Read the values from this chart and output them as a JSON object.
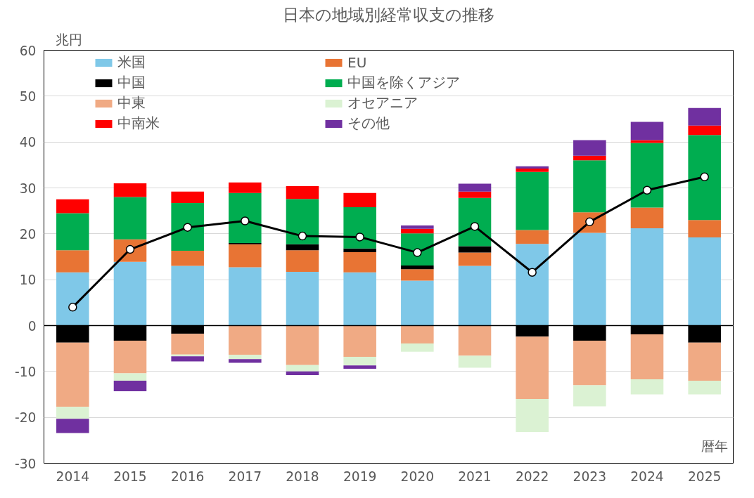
{
  "chart_data": {
    "type": "bar",
    "stacked": true,
    "title": "日本の地域別経常収支の推移",
    "ylabel": "兆円",
    "xlabel": "暦年",
    "categories": [
      "2014",
      "2015",
      "2016",
      "2017",
      "2018",
      "2019",
      "2020",
      "2021",
      "2022",
      "2023",
      "2024",
      "2025"
    ],
    "ylim": [
      -30,
      60
    ],
    "yticks": [
      -30,
      -20,
      -10,
      0,
      10,
      20,
      30,
      40,
      50,
      60
    ],
    "grid": "y",
    "legend": "top",
    "series": [
      {
        "name": "米国",
        "color": "#7fc8e8",
        "values": [
          11.6,
          13.9,
          13.0,
          12.7,
          11.7,
          11.6,
          9.8,
          13.0,
          17.8,
          20.2,
          21.2,
          19.2
        ]
      },
      {
        "name": "EU",
        "color": "#e87434",
        "values": [
          4.8,
          4.9,
          3.3,
          5.0,
          4.7,
          4.4,
          2.5,
          2.9,
          3.0,
          4.5,
          4.5,
          3.8
        ]
      },
      {
        "name": "中国",
        "color": "#000000",
        "values": [
          -3.7,
          -3.3,
          -1.8,
          0.3,
          1.3,
          0.8,
          0.8,
          1.4,
          -2.4,
          -3.3,
          -1.9,
          -3.7
        ]
      },
      {
        "name": "中国を除くアジア",
        "color": "#00ad50",
        "values": [
          8.1,
          9.2,
          10.4,
          10.9,
          9.9,
          9.0,
          7.0,
          10.5,
          12.7,
          11.3,
          14.1,
          18.5
        ]
      },
      {
        "name": "中東",
        "color": "#f0aa84",
        "values": [
          -14.0,
          -7.1,
          -4.5,
          -6.4,
          -8.6,
          -6.8,
          -3.9,
          -6.6,
          -13.6,
          -9.7,
          -9.8,
          -8.3
        ]
      },
      {
        "name": "オセアニア",
        "color": "#dbf2d3",
        "values": [
          -2.6,
          -1.6,
          -0.4,
          -0.9,
          -1.4,
          -1.9,
          -1.8,
          -2.6,
          -7.2,
          -4.6,
          -3.3,
          -3.0
        ]
      },
      {
        "name": "中南米",
        "color": "#ff0000",
        "values": [
          3.0,
          3.0,
          2.5,
          2.3,
          2.8,
          3.1,
          1.0,
          1.4,
          0.7,
          1.0,
          0.6,
          2.1
        ]
      },
      {
        "name": "その他",
        "color": "#7030a0",
        "values": [
          -3.1,
          -2.3,
          -1.1,
          -0.8,
          -0.8,
          -0.7,
          0.7,
          1.7,
          0.5,
          3.4,
          4.0,
          3.8
        ]
      },
      {
        "type": "line",
        "color": "#000000",
        "marker": "circle",
        "line_style": "solid",
        "values": [
          4.0,
          16.6,
          21.4,
          22.8,
          19.5,
          19.3,
          15.9,
          21.6,
          11.6,
          22.6,
          29.5,
          32.4
        ]
      }
    ]
  }
}
